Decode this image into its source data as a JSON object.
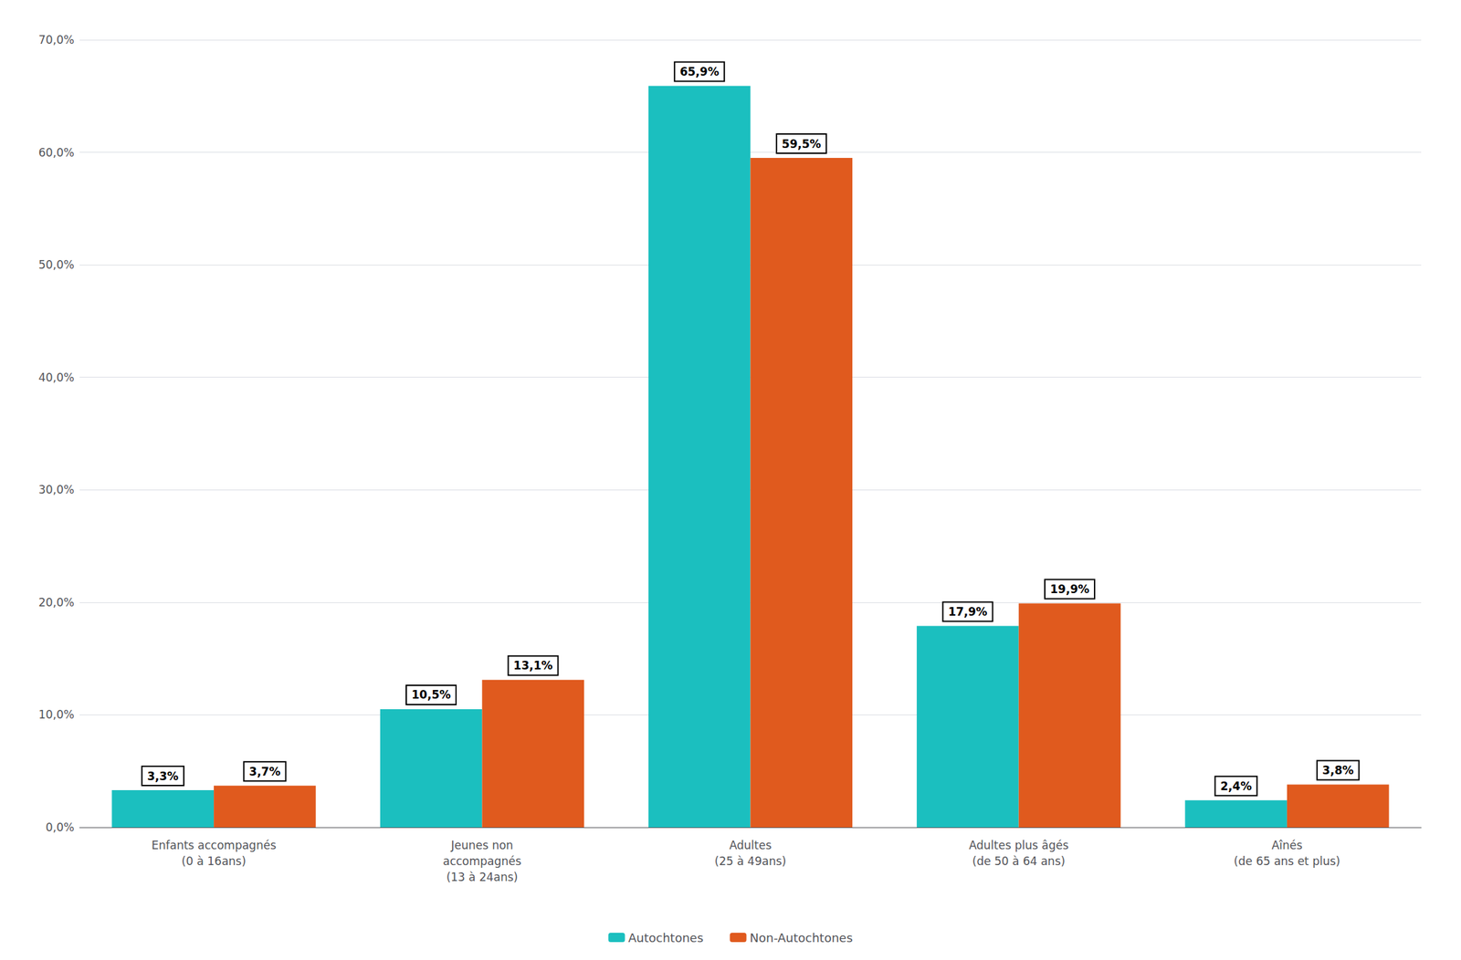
{
  "chart_data": {
    "type": "bar",
    "categories": [
      "Enfants accompagnés\n(0 à 16ans)",
      "Jeunes non\naccompagnés\n(13 à 24ans)",
      "Adultes\n(25 à 49ans)",
      "Adultes plus âgés\n(de 50 à 64 ans)",
      "Aînés\n(de 65 ans et plus)"
    ],
    "series": [
      {
        "name": "Autochtones",
        "color": "#1BBFBF",
        "values": [
          3.3,
          10.5,
          65.9,
          17.9,
          2.4
        ],
        "value_labels": [
          "3,3%",
          "10,5%",
          "65,9%",
          "17,9%",
          "2,4%"
        ]
      },
      {
        "name": "Non-Autochtones",
        "color": "#E05A1E",
        "values": [
          3.7,
          13.1,
          59.5,
          19.9,
          3.8
        ],
        "value_labels": [
          "3,7%",
          "13,1%",
          "59,5%",
          "19,9%",
          "3,8%"
        ]
      }
    ],
    "ylim": [
      0,
      70
    ],
    "yticks": [
      {
        "value": 0,
        "label": "0,0%"
      },
      {
        "value": 10,
        "label": "10,0%"
      },
      {
        "value": 20,
        "label": "20,0%"
      },
      {
        "value": 30,
        "label": "30,0%"
      },
      {
        "value": 40,
        "label": "40,0%"
      },
      {
        "value": 50,
        "label": "50,0%"
      },
      {
        "value": 60,
        "label": "60,0%"
      },
      {
        "value": 70,
        "label": "70,0%"
      }
    ],
    "grid": true,
    "legend": "bottom",
    "data_labels": true
  }
}
